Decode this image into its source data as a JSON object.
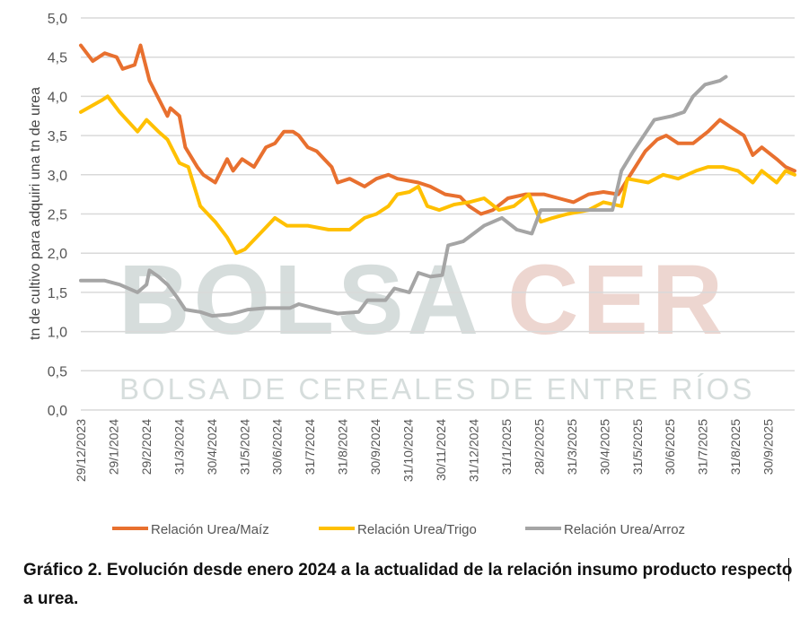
{
  "chart_data": {
    "type": "line",
    "ylabel": "tn de cultivo para adquiri una tn de urea",
    "ylim": [
      0,
      5
    ],
    "yticks": [
      "0,0",
      "0,5",
      "1,0",
      "1,5",
      "2,0",
      "2,5",
      "3,0",
      "3,5",
      "4,0",
      "4,5",
      "5,0"
    ],
    "xlim": [
      0,
      23.9
    ],
    "xtick_labels": [
      "29/12/2023",
      "29/1/2024",
      "29/2/2024",
      "31/3/2024",
      "30/4/2024",
      "31/5/2024",
      "30/6/2024",
      "31/7/2024",
      "31/8/2024",
      "30/9/2024",
      "31/10/2024",
      "30/11/2024",
      "31/12/2024",
      "31/1/2025",
      "28/2/2025",
      "31/3/2025",
      "30/4/2025",
      "31/5/2025",
      "30/6/2025",
      "31/7/2025",
      "31/8/2025",
      "30/9/2025"
    ],
    "xtick_step": 1.096,
    "grid": true,
    "legend_position": "bottom",
    "series": [
      {
        "name": "Relación Urea/Maíz",
        "color": "#E8702F",
        "points": [
          [
            0,
            4.65
          ],
          [
            0.4,
            4.45
          ],
          [
            0.8,
            4.55
          ],
          [
            1.2,
            4.5
          ],
          [
            1.4,
            4.35
          ],
          [
            1.8,
            4.4
          ],
          [
            2.0,
            4.65
          ],
          [
            2.3,
            4.2
          ],
          [
            2.7,
            3.9
          ],
          [
            2.9,
            3.75
          ],
          [
            3.0,
            3.85
          ],
          [
            3.3,
            3.75
          ],
          [
            3.5,
            3.35
          ],
          [
            3.9,
            3.1
          ],
          [
            4.1,
            3.0
          ],
          [
            4.5,
            2.9
          ],
          [
            4.9,
            3.2
          ],
          [
            5.1,
            3.05
          ],
          [
            5.4,
            3.2
          ],
          [
            5.8,
            3.1
          ],
          [
            6.2,
            3.35
          ],
          [
            6.5,
            3.4
          ],
          [
            6.8,
            3.55
          ],
          [
            7.1,
            3.55
          ],
          [
            7.3,
            3.5
          ],
          [
            7.6,
            3.35
          ],
          [
            7.9,
            3.3
          ],
          [
            8.4,
            3.1
          ],
          [
            8.6,
            2.9
          ],
          [
            9.0,
            2.95
          ],
          [
            9.5,
            2.85
          ],
          [
            9.9,
            2.95
          ],
          [
            10.3,
            3.0
          ],
          [
            10.6,
            2.95
          ],
          [
            11.3,
            2.9
          ],
          [
            11.7,
            2.85
          ],
          [
            12.2,
            2.75
          ],
          [
            12.7,
            2.72
          ],
          [
            13.0,
            2.6
          ],
          [
            13.4,
            2.5
          ],
          [
            13.8,
            2.55
          ],
          [
            14.3,
            2.7
          ],
          [
            14.9,
            2.75
          ],
          [
            15.5,
            2.75
          ],
          [
            16.0,
            2.7
          ],
          [
            16.5,
            2.65
          ],
          [
            17.0,
            2.75
          ],
          [
            17.5,
            2.78
          ],
          [
            18.0,
            2.75
          ],
          [
            18.4,
            3.0
          ],
          [
            18.9,
            3.3
          ],
          [
            19.3,
            3.45
          ],
          [
            19.6,
            3.5
          ],
          [
            20.0,
            3.4
          ],
          [
            20.5,
            3.4
          ],
          [
            21.0,
            3.55
          ],
          [
            21.4,
            3.7
          ],
          [
            21.8,
            3.6
          ],
          [
            22.2,
            3.5
          ],
          [
            22.5,
            3.25
          ],
          [
            22.8,
            3.35
          ],
          [
            23.3,
            3.2
          ],
          [
            23.6,
            3.1
          ],
          [
            23.9,
            3.05
          ]
        ]
      },
      {
        "name": "Relación Urea/Trigo",
        "color": "#FFC000",
        "points": [
          [
            0,
            3.8
          ],
          [
            0.7,
            3.95
          ],
          [
            0.9,
            4.0
          ],
          [
            1.3,
            3.8
          ],
          [
            1.9,
            3.55
          ],
          [
            2.2,
            3.7
          ],
          [
            2.6,
            3.55
          ],
          [
            2.9,
            3.45
          ],
          [
            3.3,
            3.15
          ],
          [
            3.6,
            3.1
          ],
          [
            4.0,
            2.6
          ],
          [
            4.5,
            2.4
          ],
          [
            4.9,
            2.2
          ],
          [
            5.2,
            2.0
          ],
          [
            5.5,
            2.05
          ],
          [
            6.0,
            2.25
          ],
          [
            6.5,
            2.45
          ],
          [
            6.9,
            2.35
          ],
          [
            7.6,
            2.35
          ],
          [
            8.3,
            2.3
          ],
          [
            9.0,
            2.3
          ],
          [
            9.5,
            2.45
          ],
          [
            9.9,
            2.5
          ],
          [
            10.3,
            2.6
          ],
          [
            10.6,
            2.75
          ],
          [
            11.0,
            2.78
          ],
          [
            11.3,
            2.85
          ],
          [
            11.6,
            2.6
          ],
          [
            12.0,
            2.55
          ],
          [
            12.5,
            2.62
          ],
          [
            13.0,
            2.65
          ],
          [
            13.5,
            2.7
          ],
          [
            14.0,
            2.55
          ],
          [
            14.5,
            2.6
          ],
          [
            15.0,
            2.75
          ],
          [
            15.4,
            2.4
          ],
          [
            15.8,
            2.45
          ],
          [
            16.3,
            2.5
          ],
          [
            17.0,
            2.55
          ],
          [
            17.5,
            2.65
          ],
          [
            18.1,
            2.6
          ],
          [
            18.3,
            2.95
          ],
          [
            19.0,
            2.9
          ],
          [
            19.5,
            3.0
          ],
          [
            20.0,
            2.95
          ],
          [
            20.6,
            3.05
          ],
          [
            21.0,
            3.1
          ],
          [
            21.5,
            3.1
          ],
          [
            22.0,
            3.05
          ],
          [
            22.5,
            2.9
          ],
          [
            22.8,
            3.05
          ],
          [
            23.3,
            2.9
          ],
          [
            23.6,
            3.05
          ],
          [
            23.9,
            3.0
          ]
        ]
      },
      {
        "name": "Relación Urea/Arroz",
        "color": "#A5A5A5",
        "points": [
          [
            0,
            1.65
          ],
          [
            0.8,
            1.65
          ],
          [
            1.3,
            1.6
          ],
          [
            1.9,
            1.5
          ],
          [
            2.2,
            1.6
          ],
          [
            2.3,
            1.78
          ],
          [
            2.6,
            1.7
          ],
          [
            2.9,
            1.6
          ],
          [
            3.2,
            1.45
          ],
          [
            3.5,
            1.28
          ],
          [
            4.0,
            1.25
          ],
          [
            4.4,
            1.2
          ],
          [
            5.0,
            1.22
          ],
          [
            5.6,
            1.28
          ],
          [
            6.2,
            1.3
          ],
          [
            7.0,
            1.3
          ],
          [
            7.3,
            1.35
          ],
          [
            8.0,
            1.28
          ],
          [
            8.6,
            1.23
          ],
          [
            9.3,
            1.25
          ],
          [
            9.6,
            1.4
          ],
          [
            10.2,
            1.4
          ],
          [
            10.5,
            1.55
          ],
          [
            11.0,
            1.5
          ],
          [
            11.3,
            1.75
          ],
          [
            11.7,
            1.7
          ],
          [
            12.1,
            1.72
          ],
          [
            12.3,
            2.1
          ],
          [
            12.8,
            2.15
          ],
          [
            13.5,
            2.35
          ],
          [
            14.1,
            2.45
          ],
          [
            14.6,
            2.3
          ],
          [
            15.1,
            2.25
          ],
          [
            15.4,
            2.55
          ],
          [
            15.9,
            2.55
          ],
          [
            17.0,
            2.55
          ],
          [
            17.8,
            2.55
          ],
          [
            18.1,
            3.05
          ],
          [
            18.5,
            3.3
          ],
          [
            19.2,
            3.7
          ],
          [
            19.8,
            3.75
          ],
          [
            20.2,
            3.8
          ],
          [
            20.5,
            4.0
          ],
          [
            20.9,
            4.15
          ],
          [
            21.4,
            4.2
          ],
          [
            21.6,
            4.25
          ]
        ]
      }
    ]
  },
  "watermark": {
    "logo": "BOLSACER",
    "subtitle": "BOLSA DE CEREALES DE ENTRE RÍOS"
  },
  "caption": "Gráfico 2. Evolución desde enero 2024 a la actualidad de la relación insumo producto respecto a urea."
}
